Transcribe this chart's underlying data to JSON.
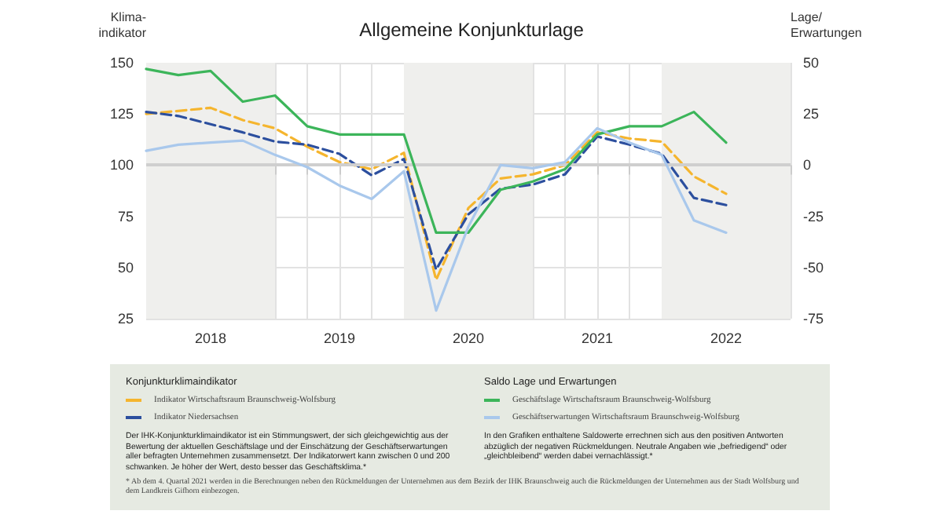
{
  "chart_data": {
    "type": "line",
    "title": "Allgemeine Konjunkturlage",
    "ylabel": "Klima-\nindikator",
    "y2label": "Lage/\nErwartungen",
    "x": [
      2018,
      2018.25,
      2018.5,
      2018.75,
      2019,
      2019.25,
      2019.5,
      2019.75,
      2020,
      2020.25,
      2020.5,
      2020.75,
      2021,
      2021.25,
      2021.5,
      2021.75,
      2022,
      2022.25,
      2022.5
    ],
    "series": [
      {
        "name": "Indikator Wirtschaftsraum Braunschweig-Wolfsburg",
        "color": "#f5b52e",
        "line_style": "dashed",
        "values": [
          125,
          126.5,
          128,
          122,
          118,
          109,
          101.5,
          98,
          106,
          44,
          79,
          93.5,
          95.5,
          100,
          116,
          113,
          111.5,
          94.5,
          86
        ]
      },
      {
        "name": "Indikator Niedersachsen",
        "color": "#2c4f9e",
        "line_style": "dashed",
        "values": [
          126,
          124,
          120,
          116,
          111.5,
          110,
          105.5,
          95,
          103,
          49,
          76,
          88.5,
          90.5,
          95.5,
          114,
          110,
          105.5,
          84,
          80.5
        ]
      },
      {
        "name": "Geschäftslage Wirtschaftsraum Braunschweig-Wolfsburg",
        "color": "#3cb55a",
        "line_style": "solid",
        "axis": "y2",
        "values": [
          47,
          44,
          46,
          31,
          34,
          19,
          15,
          15,
          15,
          -33,
          -33,
          -12,
          -8,
          -2,
          15,
          19,
          19,
          26,
          11
        ]
      },
      {
        "name": "Geschäftserwartungen Wirtschaftsraum Braunschweig-Wolfsburg",
        "color": "#a9c8ec",
        "line_style": "solid",
        "axis": "y2",
        "values": [
          7,
          10,
          11,
          12,
          5,
          -1,
          -10,
          -16.5,
          -3,
          -71,
          -30,
          0,
          -1.5,
          1.5,
          18,
          11,
          5,
          -27,
          -33
        ]
      }
    ],
    "xlim": [
      2018,
      2023
    ],
    "xticks": [
      {
        "value": 2018,
        "label": null
      },
      {
        "value": 2018.25,
        "label": null
      },
      {
        "value": 2018.5,
        "label": "2018"
      },
      {
        "value": 2018.75,
        "label": null
      },
      {
        "value": 2019,
        "label": null
      },
      {
        "value": 2019.25,
        "label": null
      },
      {
        "value": 2019.5,
        "label": "2019"
      },
      {
        "value": 2019.75,
        "label": null
      },
      {
        "value": 2020,
        "label": null
      },
      {
        "value": 2020.25,
        "label": null
      },
      {
        "value": 2020.5,
        "label": "2020"
      },
      {
        "value": 2020.75,
        "label": null
      },
      {
        "value": 2021,
        "label": null
      },
      {
        "value": 2021.25,
        "label": null
      },
      {
        "value": 2021.5,
        "label": "2021"
      },
      {
        "value": 2021.75,
        "label": null
      },
      {
        "value": 2022,
        "label": null
      },
      {
        "value": 2022.25,
        "label": null
      },
      {
        "value": 2022.5,
        "label": "2022"
      },
      {
        "value": 2022.75,
        "label": null
      },
      {
        "value": 2023,
        "label": null
      }
    ],
    "ylim": [
      25,
      150
    ],
    "yticks": [
      25,
      50,
      75,
      100,
      125,
      150
    ],
    "y2lim": [
      -75,
      50
    ],
    "y2ticks": [
      -75,
      -50,
      -25,
      0,
      25,
      50
    ],
    "bands": [
      {
        "axis": "x",
        "from": 2018,
        "to": 2019,
        "color": "#efefed"
      },
      {
        "axis": "x",
        "from": 2020,
        "to": 2021,
        "color": "#efefed"
      },
      {
        "axis": "x",
        "from": 2022,
        "to": 2023,
        "color": "#efefed"
      }
    ],
    "ref_lines": [
      {
        "axis": "y",
        "value": 100,
        "color": "#cfcfcf"
      }
    ],
    "grid": true,
    "legend": "bottom",
    "marker": "none",
    "annotations": [
      "Konjunkturklimaindikator",
      "Saldo Lage und Erwartungen",
      "Der IHK-Konjunkturklimaindikator ist ein Stimmungswert, der sich gleichgewichtig aus der Bewertung der aktuellen Geschäftslage und der Einschätzung der Geschäftserwartungen aller befragten Unternehmen zusammensetzt. Der Indikatorwert kann zwischen 0 und 200 schwanken. Je höher der Wert, desto besser das Geschäftsklima.*",
      "In den Grafiken enthaltene Saldowerte errechnen sich aus den positiven Antworten abzüglich der negativen Rückmeldungen. Neutrale Angaben wie „befriedigend“ oder „gleichbleibend“ werden dabei vernachlässigt.*",
      "* Ab dem 4. Quartal 2021 werden in die Berechnungen neben den Rückmeldungen der Unternehmen aus dem Bezirk der IHK Braunschweig auch die Rückmeldungen der Unternehmen aus der Stadt Wolfsburg und dem Landkreis Gifhorn einbezogen."
    ]
  }
}
